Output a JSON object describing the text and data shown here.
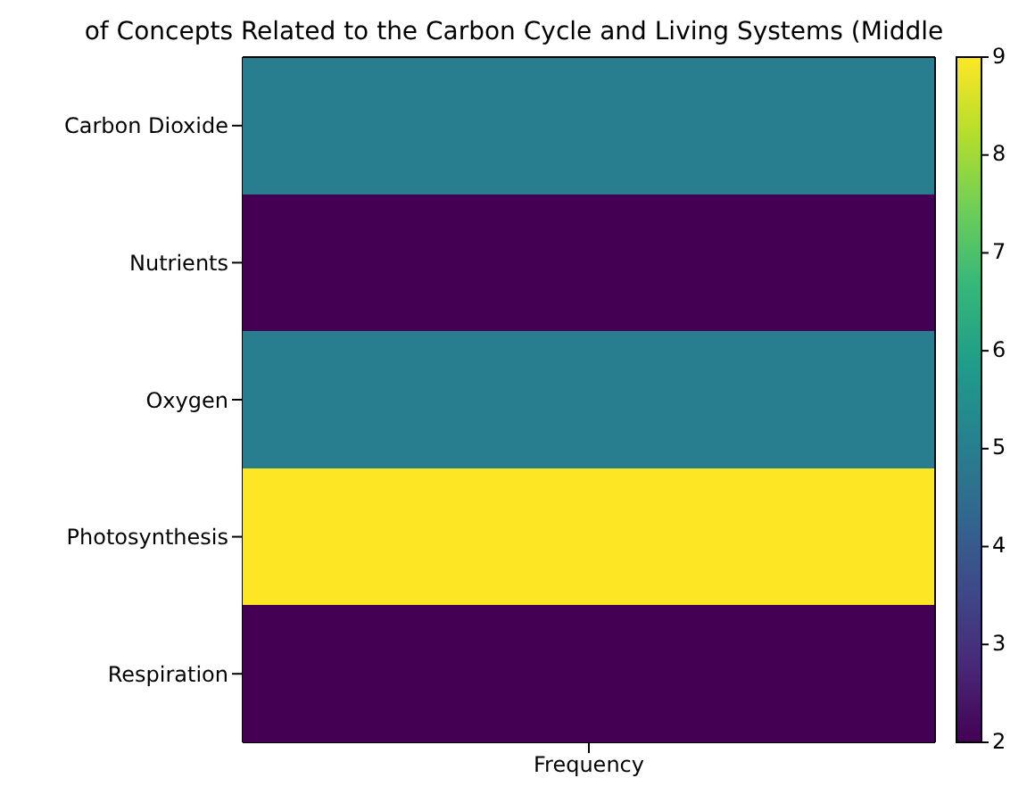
{
  "chart_data": {
    "type": "heatmap",
    "title": "of Concepts Related to the Carbon Cycle and Living Systems (Middle",
    "categories": [
      "Frequency"
    ],
    "y_categories": [
      "Carbon Dioxide",
      "Nutrients",
      "Oxygen",
      "Photosynthesis",
      "Respiration"
    ],
    "cells": [
      [
        5
      ],
      [
        2
      ],
      [
        5
      ],
      [
        9
      ],
      [
        2
      ]
    ],
    "clim": [
      2,
      9
    ],
    "cticks": [
      2,
      3,
      4,
      5,
      6,
      7,
      8,
      9
    ]
  }
}
